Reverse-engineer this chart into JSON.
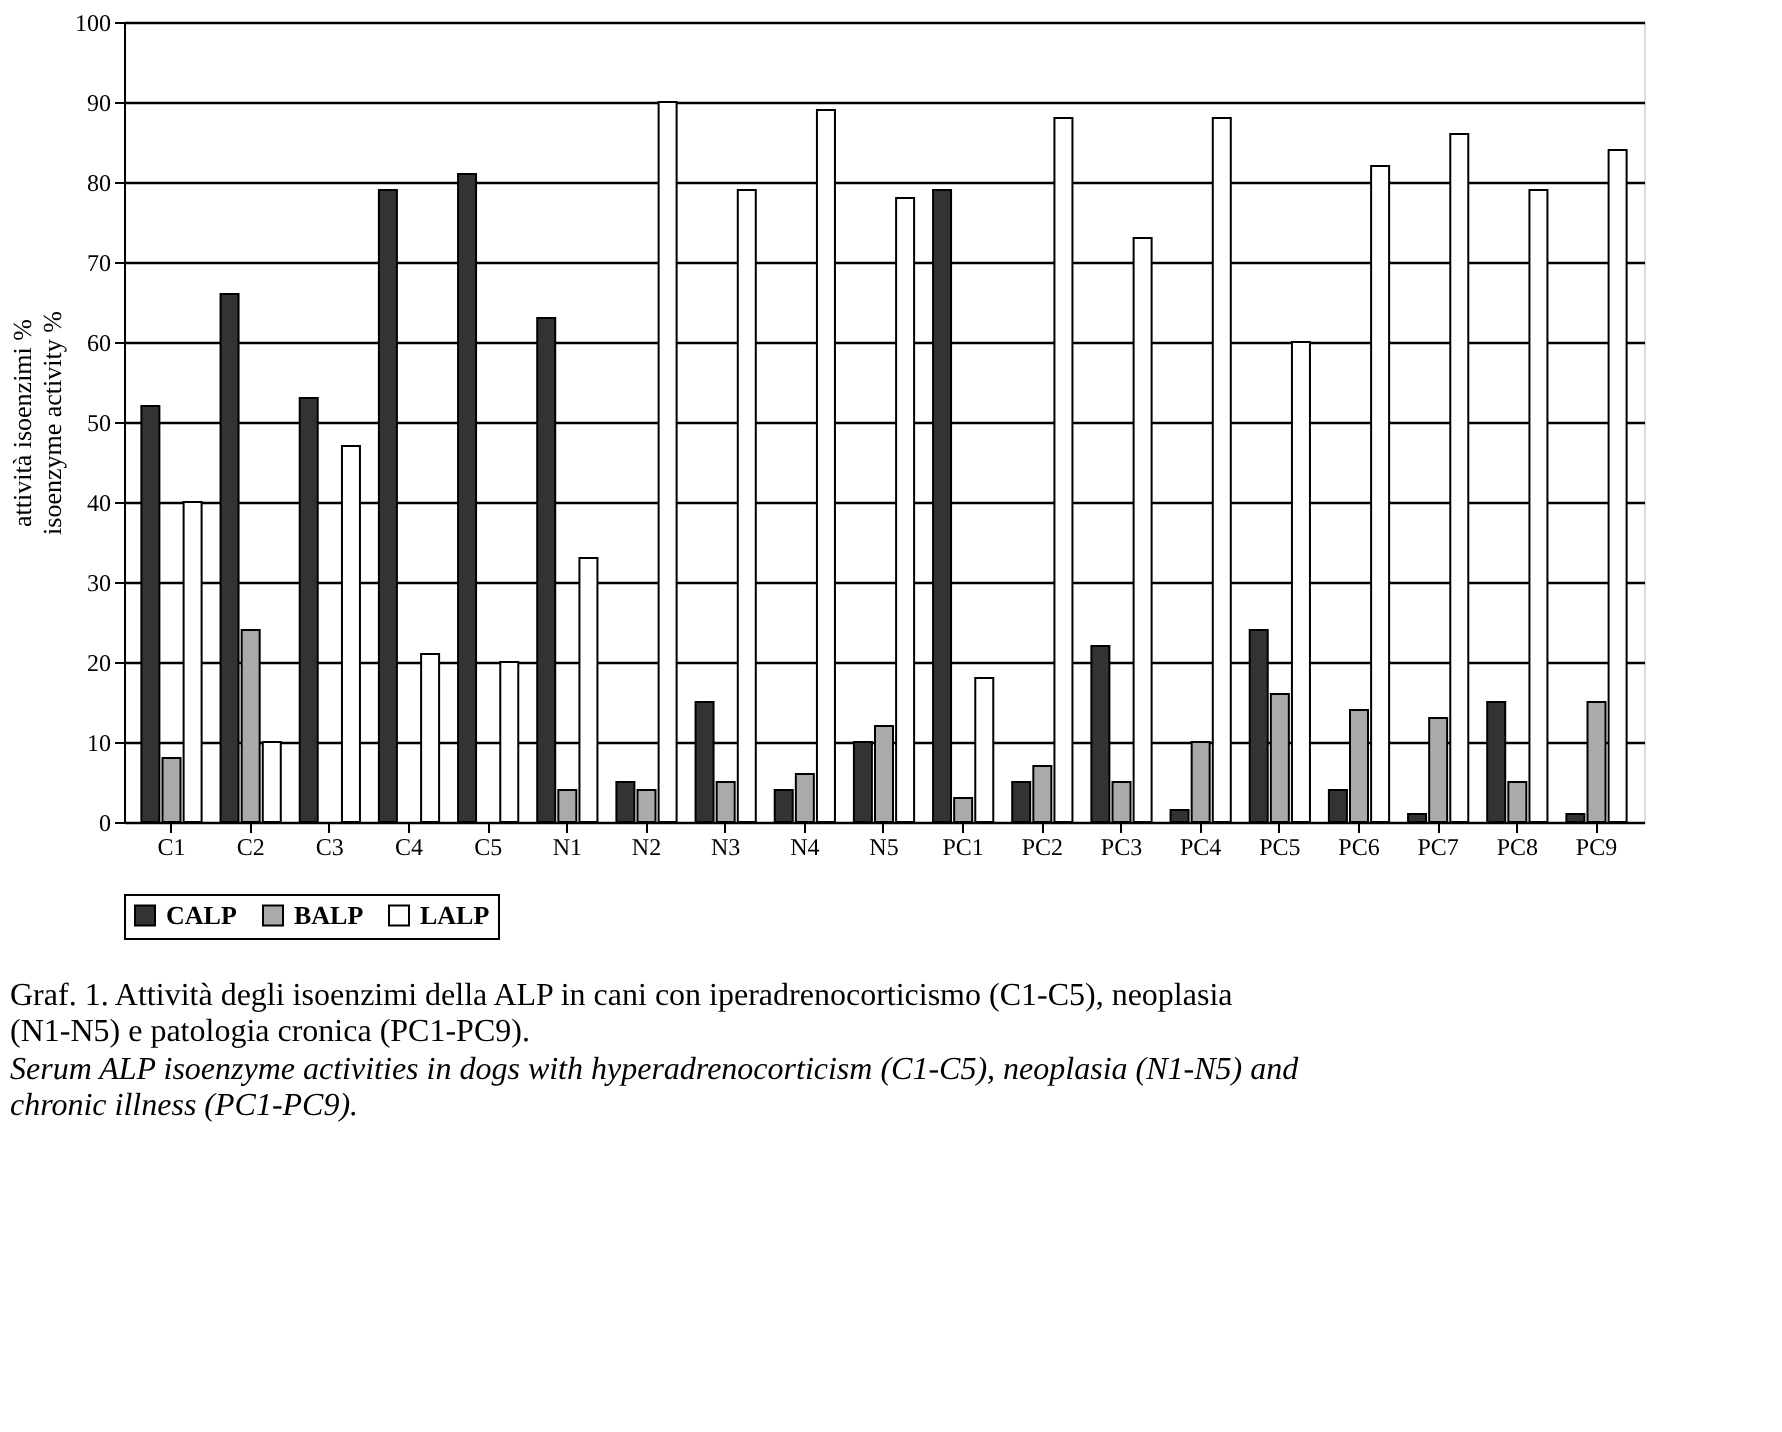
{
  "chart_data": {
    "type": "bar",
    "ylabel": "attività isoenzimi %\nisoenzyme activity %",
    "categories": [
      "C1",
      "C2",
      "C3",
      "C4",
      "C5",
      "N1",
      "N2",
      "N3",
      "N4",
      "N5",
      "PC1",
      "PC2",
      "PC3",
      "PC4",
      "PC5",
      "PC6",
      "PC7",
      "PC8",
      "PC9"
    ],
    "series": [
      {
        "name": "CALP",
        "color": "#333333",
        "values": [
          52,
          66,
          53,
          79,
          81,
          63,
          5,
          15,
          4,
          10,
          79,
          5,
          22,
          1.5,
          24,
          4,
          1,
          15,
          1
        ]
      },
      {
        "name": "BALP",
        "color": "#aaaaaa",
        "values": [
          8,
          24,
          null,
          null,
          null,
          4,
          4,
          5,
          6,
          12,
          3,
          7,
          5,
          10,
          16,
          14,
          13,
          5,
          15
        ]
      },
      {
        "name": "LALP",
        "color": "#ffffff",
        "values": [
          40,
          10,
          47,
          21,
          20,
          33,
          90,
          79,
          89,
          78,
          18,
          88,
          73,
          88,
          60,
          82,
          86,
          79,
          84
        ]
      }
    ],
    "ylim": [
      0,
      100
    ],
    "yticks": [
      0,
      10,
      20,
      30,
      40,
      50,
      60,
      70,
      80,
      90,
      100
    ],
    "grid": "y",
    "legend": "bottom",
    "annotations": [
      "Graf. 1. Attività degli isoenzimi della ALP in cani con iperadrenocorticismo (C1-C5), neoplasia (N1-N5) e patologia cronica (PC1-PC9).",
      "Serum ALP isoenzyme activities in dogs with hyperadrenocorticism (C1-C5), neoplasia (N1-N5) and chronic illness (PC1-PC9)."
    ]
  }
}
